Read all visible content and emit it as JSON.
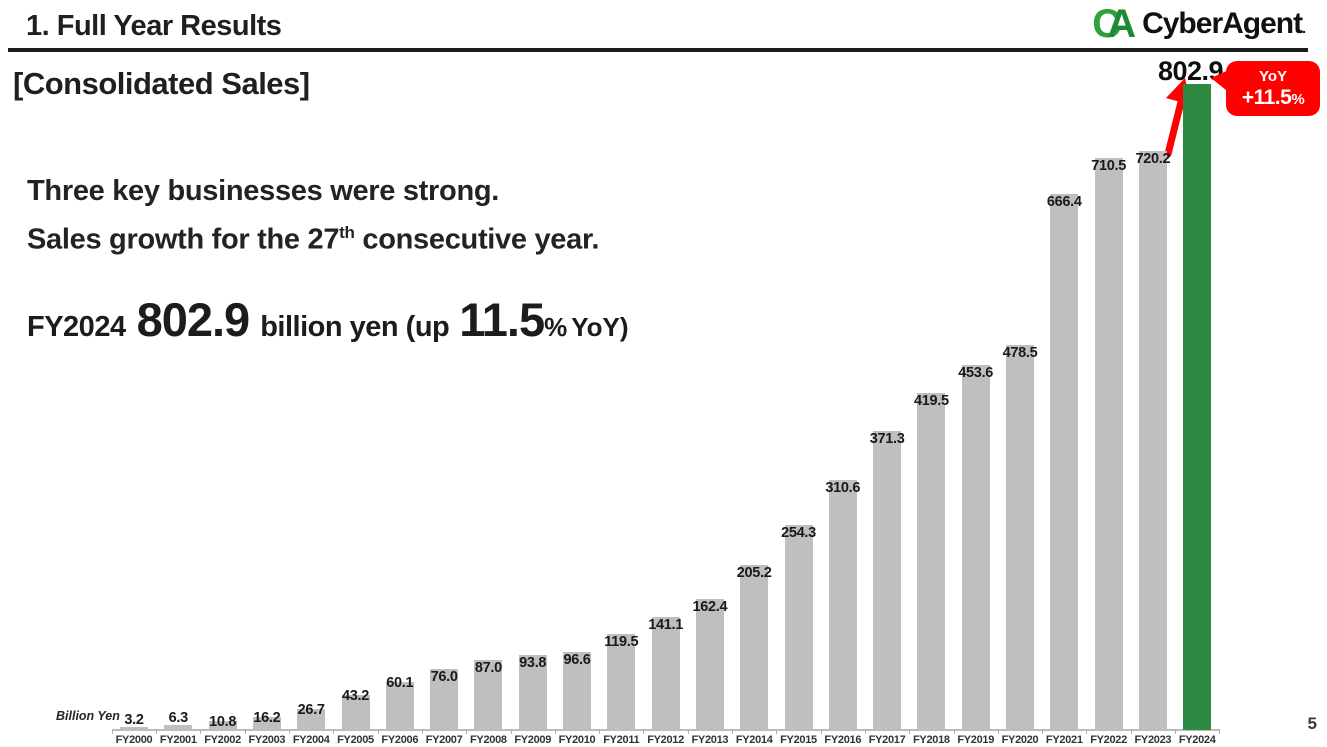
{
  "slide": {
    "title": "1. Full Year Results",
    "section_label": "[Consolidated Sales]",
    "message_line1": "Three key businesses were strong.",
    "message_line2_prefix": "Sales growth for the 27",
    "message_line2_sup": "th",
    "message_line2_suffix": " consecutive year.",
    "stat": {
      "fiscal_year": "FY2024",
      "value": "802.9",
      "unit_text": "billion yen (up",
      "pct_value": "11.5",
      "pct_sign": "%",
      "yoy_text": "YoY)"
    },
    "page_number": "5"
  },
  "logo": {
    "mark_c": "C",
    "mark_a": "A",
    "text": "CyberAgent",
    "reg_mark": ".",
    "c_color": "#2FA23F",
    "a_color": "#1E8A35"
  },
  "chart_data": {
    "type": "bar",
    "title": "Consolidated Sales by fiscal year",
    "unit_label": "Billion Yen",
    "ylabel": "Billion Yen",
    "xlabel": "",
    "ylim": [
      0,
      850
    ],
    "grid": false,
    "legend": "none",
    "categories": [
      "FY2000",
      "FY2001",
      "FY2002",
      "FY2003",
      "FY2004",
      "FY2005",
      "FY2006",
      "FY2007",
      "FY2008",
      "FY2009",
      "FY2010",
      "FY2011",
      "FY2012",
      "FY2013",
      "FY2014",
      "FY2015",
      "FY2016",
      "FY2017",
      "FY2018",
      "FY2019",
      "FY2020",
      "FY2021",
      "FY2022",
      "FY2023",
      "FY2024"
    ],
    "values": [
      3.2,
      6.3,
      10.8,
      16.2,
      26.7,
      43.2,
      60.1,
      76.0,
      87.0,
      93.8,
      96.6,
      119.5,
      141.1,
      162.4,
      205.2,
      254.3,
      310.6,
      371.3,
      419.5,
      453.6,
      478.5,
      666.4,
      710.5,
      720.2,
      802.9
    ],
    "labels": [
      "3.2",
      "6.3",
      "10.8",
      "16.2",
      "26.7",
      "43.2",
      "60.1",
      "76.0",
      "87.0",
      "93.8",
      "96.6",
      "119.5",
      "141.1",
      "162.4",
      "205.2",
      "254.3",
      "310.6",
      "371.3",
      "419.5",
      "453.6",
      "478.5",
      "666.4",
      "710.5",
      "720.2",
      "802.9"
    ],
    "bar_color": "#BFBFBF",
    "highlight_category": "FY2024",
    "highlight_color": "#2E8A43",
    "annotation": {
      "value_label": "802.9",
      "badge_line1": "YoY",
      "badge_value": "+11.5",
      "badge_pct": "%",
      "badge_color": "#FF0000",
      "arrow_color": "#FF0000"
    }
  }
}
